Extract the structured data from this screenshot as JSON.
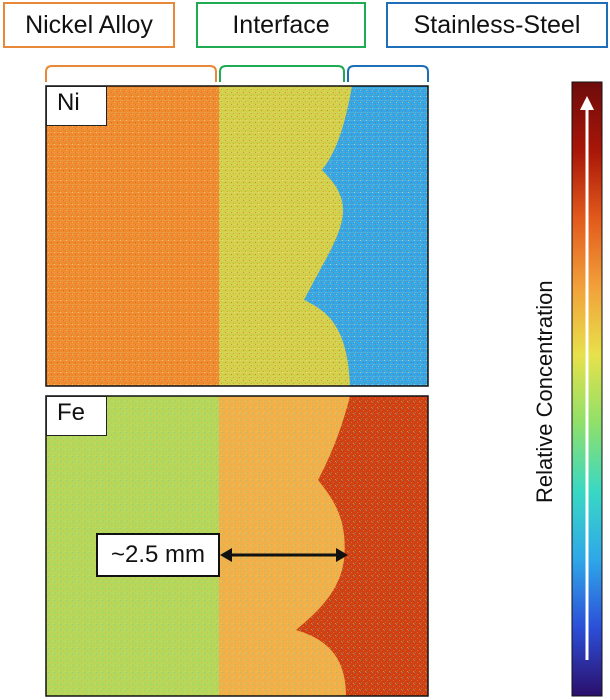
{
  "headers": {
    "nickel": {
      "label": "Nickel Alloy",
      "color": "#e8893a"
    },
    "interface": {
      "label": "Interface",
      "color": "#1faa54"
    },
    "steel": {
      "label": "Stainless-Steel",
      "color": "#1f6fb8"
    }
  },
  "panels": {
    "ni": {
      "label": "Ni"
    },
    "fe": {
      "label": "Fe"
    }
  },
  "annotation": {
    "label": "~2.5 mm"
  },
  "colorbar": {
    "label": "Relative Concentration",
    "colors": [
      "#2b0f6b",
      "#2c4fd8",
      "#2fa7e8",
      "#39d8c4",
      "#8fe06a",
      "#e7e14a",
      "#f2a03a",
      "#e25a1c",
      "#a81608",
      "#6e0c0c"
    ]
  },
  "colors": {
    "ni_alloy": "#ef8a2e",
    "ni_interface": "#d2cf4a",
    "ni_steel": "#34a6e6",
    "fe_alloy": "#b7d75b",
    "fe_interface": "#f2b04a",
    "fe_steel": "#cf4115"
  }
}
